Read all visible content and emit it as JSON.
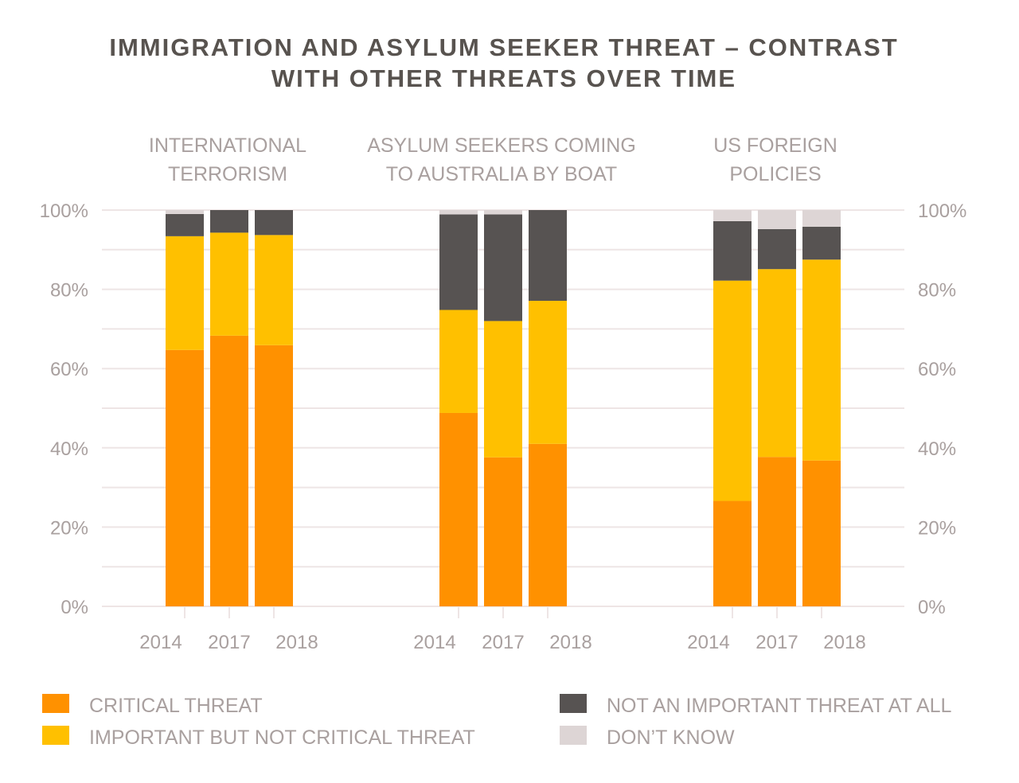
{
  "chart_data": {
    "type": "bar",
    "stacked": true,
    "title": "IMMIGRATION AND ASYLUM SEEKER THREAT – CONTRAST WITH OTHER THREATS OVER TIME",
    "title_lines": [
      "IMMIGRATION AND ASYLUM SEEKER THREAT – CONTRAST",
      "WITH OTHER THREATS OVER TIME"
    ],
    "xlabel": "",
    "ylabel": "",
    "ylim": [
      0,
      100
    ],
    "y_ticks": [
      0,
      20,
      40,
      60,
      80,
      100
    ],
    "y_tick_labels": [
      "0%",
      "20%",
      "40%",
      "60%",
      "80%",
      "100%"
    ],
    "y_axis_both_sides": true,
    "grid": true,
    "grid_step": 10,
    "legend_position": "bottom",
    "series": [
      {
        "name": "CRITICAL THREAT",
        "color": "#FF9100"
      },
      {
        "name": "IMPORTANT BUT NOT CRITICAL THREAT",
        "color": "#FFC000"
      },
      {
        "name": "NOT AN IMPORTANT THREAT AT ALL",
        "color": "#575352"
      },
      {
        "name": "DON’T KNOW",
        "color": "#DDD5D5"
      }
    ],
    "groups": [
      {
        "label_lines": [
          "INTERNATIONAL",
          "TERRORISM"
        ],
        "categories": [
          "2014",
          "2017",
          "2018"
        ],
        "values": [
          [
            64.7,
            28.7,
            5.6,
            1.0
          ],
          [
            68.3,
            26.0,
            5.7,
            0.0
          ],
          [
            65.9,
            27.8,
            6.3,
            0.0
          ]
        ]
      },
      {
        "label_lines": [
          "ASYLUM SEEKERS COMING",
          "TO AUSTRALIA BY BOAT"
        ],
        "categories": [
          "2014",
          "2017",
          "2018"
        ],
        "values": [
          [
            48.8,
            26.0,
            24.1,
            1.1
          ],
          [
            37.6,
            34.4,
            26.9,
            1.1
          ],
          [
            41.0,
            36.1,
            22.9,
            0.0
          ]
        ]
      },
      {
        "label_lines": [
          "US FOREIGN",
          "POLICIES"
        ],
        "categories": [
          "2014",
          "2017",
          "2018"
        ],
        "values": [
          [
            26.6,
            55.6,
            15.0,
            2.8
          ],
          [
            37.7,
            47.4,
            10.1,
            4.8
          ],
          [
            36.8,
            50.7,
            8.3,
            4.2
          ]
        ]
      }
    ]
  }
}
